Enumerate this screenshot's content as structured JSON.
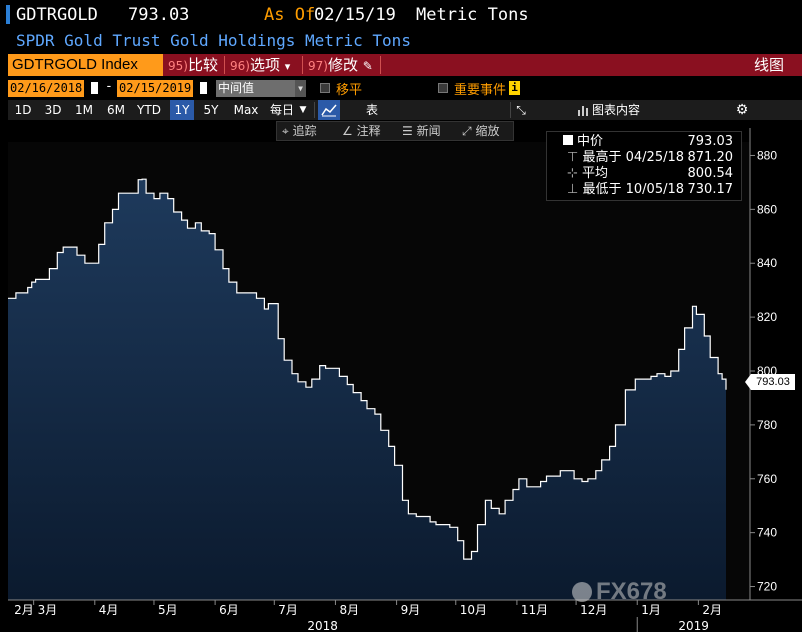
{
  "header": {
    "ticker": "GDTRGOLD",
    "last_price": "793.03",
    "as_of_label": "As Of",
    "as_of_date": "02/15/19",
    "unit": "Metric Tons",
    "description": "SPDR Gold Trust Gold Holdings Metric Tons"
  },
  "menu": {
    "security_field": "GDTRGOLD Index",
    "compare": {
      "num": "95)",
      "label": "比较"
    },
    "options": {
      "num": "96)",
      "label": "选项"
    },
    "edit": {
      "num": "97)",
      "label": "修改"
    },
    "chart_type": "线图",
    "dropdown_glyph": "▾",
    "pencil_glyph": "✎"
  },
  "date_controls": {
    "start_date": "02/16/2018",
    "end_date": "02/15/2019",
    "separator": "-",
    "price_type": "中间值",
    "shift_label": "移平",
    "key_events_label": "重要事件",
    "info_glyph": "i"
  },
  "toolbar": {
    "periods": [
      "1D",
      "3D",
      "1M",
      "6M",
      "YTD",
      "1Y",
      "5Y",
      "Max"
    ],
    "selected_period": "1Y",
    "frequency": "每日",
    "frequency_arrow": "▼",
    "table_label": "表",
    "chart_contents_label": "图表内容",
    "collapse_glyph": "⤡",
    "settings_glyph": "⚙"
  },
  "annotation_toolbar": {
    "track": "追踪",
    "annotate": "注释",
    "news": "新闻",
    "zoom": "缩放"
  },
  "legend": {
    "name": "中价",
    "name_value": "793.03",
    "high_label": "最高于",
    "high_date": "04/25/18",
    "high_value": "871.20",
    "avg_label": "平均",
    "avg_value": "800.54",
    "low_label": "最低于",
    "low_date": "10/05/18",
    "low_value": "730.17"
  },
  "price_tag": "793.03",
  "watermark": "FX678",
  "colors": {
    "area_top": "#1e3a5c",
    "area_bottom": "#0b1a2e",
    "line": "#ffffff",
    "orange": "#ff9a1a",
    "menu_red": "#8a1020",
    "selected_blue": "#2b5aa8"
  },
  "chart_data": {
    "type": "area",
    "ylim": [
      715,
      885
    ],
    "yticks": [
      720,
      740,
      760,
      780,
      800,
      820,
      840,
      860,
      880
    ],
    "month_ticks": [
      "2月",
      "3月",
      "4月",
      "5月",
      "6月",
      "7月",
      "8月",
      "9月",
      "10月",
      "11月",
      "12月",
      "1月",
      "2月"
    ],
    "year_labels": [
      "2018",
      "2019"
    ],
    "x_range": [
      "2018-02-16",
      "2019-02-15"
    ],
    "series": [
      {
        "values": [
          [
            "2018-02-16",
            827
          ],
          [
            "2018-02-20",
            829
          ],
          [
            "2018-02-23",
            829
          ],
          [
            "2018-02-26",
            831
          ],
          [
            "2018-02-28",
            833
          ],
          [
            "2018-03-02",
            834
          ],
          [
            "2018-03-06",
            834
          ],
          [
            "2018-03-09",
            838
          ],
          [
            "2018-03-13",
            844
          ],
          [
            "2018-03-16",
            846
          ],
          [
            "2018-03-20",
            846
          ],
          [
            "2018-03-23",
            843
          ],
          [
            "2018-03-27",
            840
          ],
          [
            "2018-03-30",
            840
          ],
          [
            "2018-04-03",
            847
          ],
          [
            "2018-04-06",
            855
          ],
          [
            "2018-04-10",
            860
          ],
          [
            "2018-04-13",
            866
          ],
          [
            "2018-04-17",
            866
          ],
          [
            "2018-04-20",
            866
          ],
          [
            "2018-04-23",
            871
          ],
          [
            "2018-04-25",
            871.2
          ],
          [
            "2018-04-27",
            866
          ],
          [
            "2018-05-01",
            864
          ],
          [
            "2018-05-04",
            866
          ],
          [
            "2018-05-08",
            864
          ],
          [
            "2018-05-11",
            859
          ],
          [
            "2018-05-15",
            856
          ],
          [
            "2018-05-18",
            853
          ],
          [
            "2018-05-22",
            855
          ],
          [
            "2018-05-25",
            852
          ],
          [
            "2018-05-29",
            851
          ],
          [
            "2018-06-01",
            845
          ],
          [
            "2018-06-05",
            838
          ],
          [
            "2018-06-08",
            833
          ],
          [
            "2018-06-12",
            829
          ],
          [
            "2018-06-15",
            829
          ],
          [
            "2018-06-19",
            829
          ],
          [
            "2018-06-22",
            827
          ],
          [
            "2018-06-26",
            823
          ],
          [
            "2018-06-28",
            825
          ],
          [
            "2018-07-03",
            812
          ],
          [
            "2018-07-06",
            804
          ],
          [
            "2018-07-10",
            799
          ],
          [
            "2018-07-13",
            796
          ],
          [
            "2018-07-17",
            794
          ],
          [
            "2018-07-20",
            797
          ],
          [
            "2018-07-24",
            802
          ],
          [
            "2018-07-27",
            801
          ],
          [
            "2018-07-31",
            801
          ],
          [
            "2018-08-03",
            798
          ],
          [
            "2018-08-07",
            795
          ],
          [
            "2018-08-10",
            792
          ],
          [
            "2018-08-14",
            789
          ],
          [
            "2018-08-17",
            786
          ],
          [
            "2018-08-21",
            784
          ],
          [
            "2018-08-24",
            778
          ],
          [
            "2018-08-28",
            772
          ],
          [
            "2018-08-31",
            765
          ],
          [
            "2018-09-04",
            752
          ],
          [
            "2018-09-07",
            747
          ],
          [
            "2018-09-11",
            746
          ],
          [
            "2018-09-14",
            746
          ],
          [
            "2018-09-18",
            744
          ],
          [
            "2018-09-21",
            743
          ],
          [
            "2018-09-25",
            743
          ],
          [
            "2018-09-28",
            742
          ],
          [
            "2018-10-02",
            737
          ],
          [
            "2018-10-05",
            730.17
          ],
          [
            "2018-10-09",
            733
          ],
          [
            "2018-10-12",
            743
          ],
          [
            "2018-10-16",
            752
          ],
          [
            "2018-10-19",
            749
          ],
          [
            "2018-10-23",
            747
          ],
          [
            "2018-10-26",
            752
          ],
          [
            "2018-10-30",
            756
          ],
          [
            "2018-11-02",
            760
          ],
          [
            "2018-11-06",
            757
          ],
          [
            "2018-11-09",
            757
          ],
          [
            "2018-11-13",
            759
          ],
          [
            "2018-11-16",
            761
          ],
          [
            "2018-11-20",
            761
          ],
          [
            "2018-11-23",
            763
          ],
          [
            "2018-11-27",
            763
          ],
          [
            "2018-11-30",
            760
          ],
          [
            "2018-12-04",
            759
          ],
          [
            "2018-12-07",
            760
          ],
          [
            "2018-12-11",
            763
          ],
          [
            "2018-12-14",
            767
          ],
          [
            "2018-12-18",
            772
          ],
          [
            "2018-12-21",
            780
          ],
          [
            "2018-12-26",
            793
          ],
          [
            "2018-12-31",
            797
          ],
          [
            "2019-01-04",
            797
          ],
          [
            "2019-01-08",
            798
          ],
          [
            "2019-01-11",
            799
          ],
          [
            "2019-01-15",
            798
          ],
          [
            "2019-01-18",
            800
          ],
          [
            "2019-01-22",
            808
          ],
          [
            "2019-01-25",
            816
          ],
          [
            "2019-01-29",
            824
          ],
          [
            "2019-01-31",
            821
          ],
          [
            "2019-02-04",
            813
          ],
          [
            "2019-02-07",
            805
          ],
          [
            "2019-02-11",
            799
          ],
          [
            "2019-02-13",
            797
          ],
          [
            "2019-02-15",
            793.03
          ]
        ]
      }
    ]
  }
}
